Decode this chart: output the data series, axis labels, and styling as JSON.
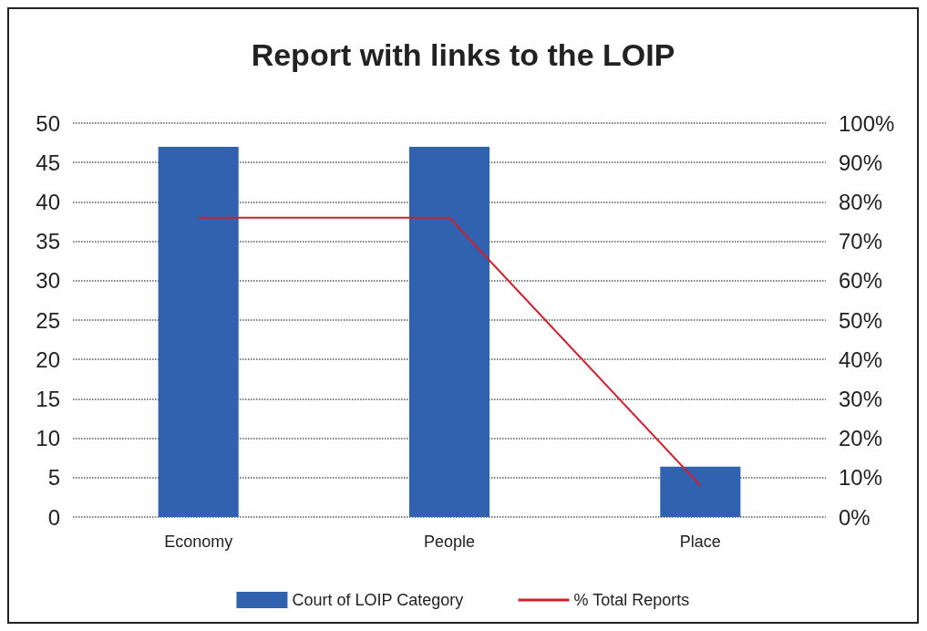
{
  "chart_data": {
    "type": "bar",
    "title": "Report with links to the LOIP",
    "categories": [
      "Economy",
      "People",
      "Place"
    ],
    "series": [
      {
        "name": "Court of LOIP Category",
        "color": "#3162b0",
        "values": [
          47,
          47,
          6.4
        ]
      },
      {
        "name": "% Total Reports",
        "type": "line",
        "axis": "y2",
        "color": "#d0202e",
        "values": [
          76,
          76,
          8
        ]
      }
    ],
    "ylim": [
      0,
      50
    ],
    "yticks": [
      0,
      5,
      10,
      15,
      20,
      25,
      30,
      35,
      40,
      45,
      50
    ],
    "y2lim": [
      0,
      100
    ],
    "y2ticks": [
      {
        "value": 0,
        "label": "0%"
      },
      {
        "value": 10,
        "label": "10%"
      },
      {
        "value": 20,
        "label": "20%"
      },
      {
        "value": 30,
        "label": "30%"
      },
      {
        "value": 40,
        "label": "40%"
      },
      {
        "value": 50,
        "label": "50%"
      },
      {
        "value": 60,
        "label": "60%"
      },
      {
        "value": 70,
        "label": "70%"
      },
      {
        "value": 80,
        "label": "80%"
      },
      {
        "value": 90,
        "label": "90%"
      },
      {
        "value": 100,
        "label": "100%"
      }
    ],
    "grid": "y",
    "legend": "bottom",
    "marker": "none",
    "line_style": "solid"
  }
}
